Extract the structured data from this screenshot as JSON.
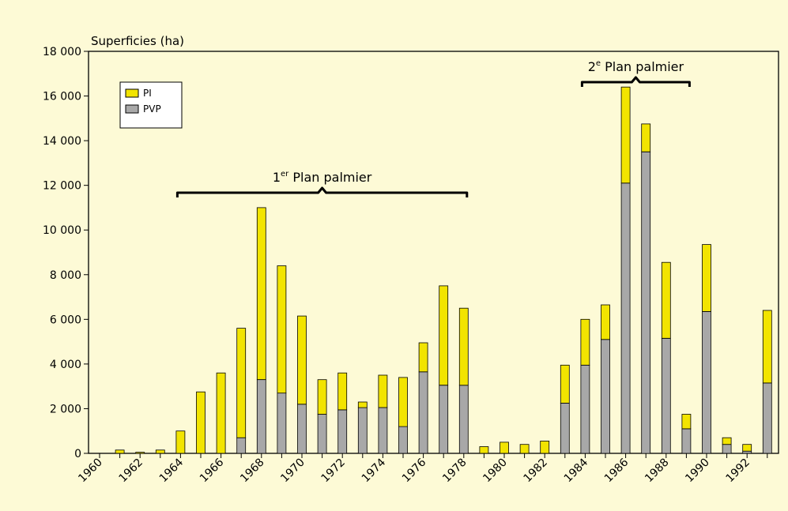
{
  "chart_data": {
    "type": "bar",
    "stacked": true,
    "ylabel": "Superficies (ha)",
    "xlabel": "",
    "ylim": [
      0,
      18000
    ],
    "yticks": [
      0,
      2000,
      4000,
      6000,
      8000,
      10000,
      12000,
      14000,
      16000,
      18000
    ],
    "ytick_labels": [
      "0",
      "2 000",
      "4 000",
      "6 000",
      "8 000",
      "10 000",
      "12 000",
      "14 000",
      "16 000",
      "18 000"
    ],
    "categories": [
      1960,
      1961,
      1962,
      1963,
      1964,
      1965,
      1966,
      1967,
      1968,
      1969,
      1970,
      1971,
      1972,
      1973,
      1974,
      1975,
      1976,
      1977,
      1978,
      1979,
      1980,
      1981,
      1982,
      1983,
      1984,
      1985,
      1986,
      1987,
      1988,
      1989,
      1990,
      1991,
      1992,
      1993
    ],
    "xtick_labels": [
      "1960",
      "1962",
      "1964",
      "1966",
      "1968",
      "1970",
      "1972",
      "1974",
      "1976",
      "1978",
      "1980",
      "1982",
      "1984",
      "1986",
      "1988",
      "1990",
      "1992"
    ],
    "series": [
      {
        "name": "PVP",
        "color": "#a8a8a8",
        "values": [
          0,
          0,
          0,
          0,
          0,
          0,
          0,
          700,
          3300,
          2700,
          2200,
          1750,
          1950,
          2050,
          2050,
          1200,
          3650,
          3050,
          3050,
          0,
          0,
          0,
          0,
          2250,
          3950,
          5100,
          12100,
          13500,
          5150,
          1100,
          6350,
          400,
          100,
          3150
        ]
      },
      {
        "name": "PI",
        "color": "#f2e400",
        "values": [
          0,
          150,
          50,
          150,
          1000,
          2750,
          3600,
          4900,
          7700,
          5700,
          3950,
          1550,
          1650,
          250,
          1450,
          2200,
          1300,
          4450,
          3450,
          300,
          500,
          400,
          550,
          1700,
          2050,
          1550,
          4300,
          1250,
          3400,
          650,
          3000,
          300,
          300,
          3250
        ]
      }
    ],
    "legend": {
      "placement": "top-left",
      "entries": [
        "PI",
        "PVP"
      ]
    },
    "annotations": [
      {
        "text": "1er Plan palmier",
        "main": "1",
        "sup": "er",
        "rest": " Plan palmier",
        "from": 1964,
        "to": 1978
      },
      {
        "text": "2e Plan palmier",
        "main": "2",
        "sup": "e",
        "rest": " Plan palmier",
        "from": 1984,
        "to": 1989
      }
    ],
    "grid": false
  }
}
